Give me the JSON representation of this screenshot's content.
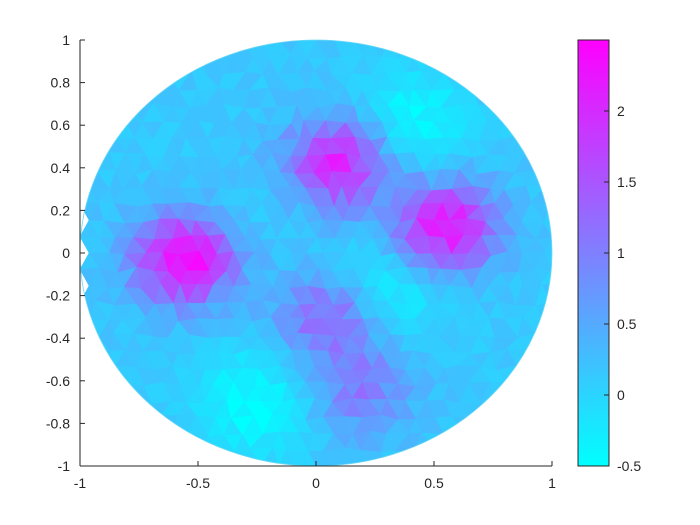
{
  "chart_data": {
    "type": "heatmap",
    "subtype": "triangulated-mesh-on-unit-disk",
    "title": "",
    "xlabel": "",
    "ylabel": "",
    "xlim": [
      -1,
      1
    ],
    "ylim": [
      -1,
      1
    ],
    "x_ticks": [
      -1,
      -0.5,
      0,
      0.5,
      1
    ],
    "x_tick_labels": [
      "-1",
      "-0.5",
      "0",
      "0.5",
      "1"
    ],
    "y_ticks": [
      1,
      0.8,
      0.6,
      0.4,
      0.2,
      0,
      -0.2,
      -0.4,
      -0.6,
      -0.8,
      -1
    ],
    "y_tick_labels": [
      "1",
      "0.8",
      "0.6",
      "0.4",
      "0.2",
      "0",
      "-0.2",
      "-0.4",
      "-0.6",
      "-0.8",
      "-1"
    ],
    "grid": false,
    "domain_shape": "unit disk",
    "colormap": "cool",
    "colormap_low_color": "#00ffff",
    "colormap_high_color": "#ff00ff",
    "colorbar": {
      "location": "right",
      "clim": [
        -0.5,
        2.5
      ],
      "ticks": [
        2,
        1.5,
        1,
        0.5,
        0,
        -0.5
      ],
      "tick_labels": [
        "2",
        "1.5",
        "1",
        "0.5",
        "0",
        "-0.5"
      ]
    },
    "features": [
      {
        "x": -0.55,
        "y": -0.02,
        "peak": 2.4,
        "sign": 1
      },
      {
        "x": 0.1,
        "y": 0.42,
        "peak": 2.1,
        "sign": 1
      },
      {
        "x": 0.55,
        "y": 0.12,
        "peak": 2.3,
        "sign": 1
      },
      {
        "x": 0.05,
        "y": -0.3,
        "peak": 1.3,
        "sign": 1
      },
      {
        "x": -0.35,
        "y": 0.35,
        "peak": 0.7,
        "sign": 1
      },
      {
        "x": 0.2,
        "y": -0.65,
        "peak": 1.0,
        "sign": 1
      },
      {
        "x": -0.25,
        "y": -0.7,
        "peak": -0.5,
        "sign": -1
      },
      {
        "x": 0.4,
        "y": 0.6,
        "peak": -0.5,
        "sign": -1
      },
      {
        "x": -0.35,
        "y": 0.3,
        "peak": -0.45,
        "sign": -1
      },
      {
        "x": 0.3,
        "y": -0.15,
        "peak": -0.45,
        "sign": -1
      }
    ]
  }
}
